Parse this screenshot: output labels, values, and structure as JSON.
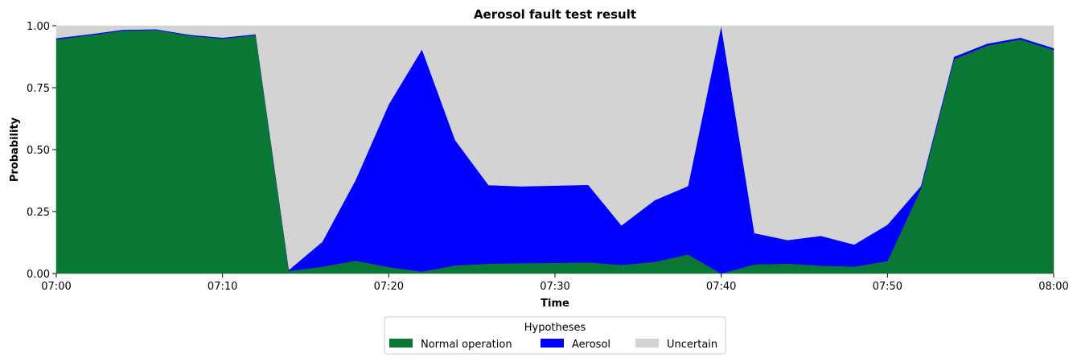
{
  "chart_data": {
    "type": "area",
    "stacked": true,
    "title": "Aerosol fault test result",
    "xlabel": "Time",
    "ylabel": "Probability",
    "xlim": [
      "07:00",
      "08:00"
    ],
    "ylim": [
      0,
      1
    ],
    "x_ticks": [
      "07:00",
      "07:10",
      "07:20",
      "07:30",
      "07:40",
      "07:50",
      "08:00"
    ],
    "y_ticks": [
      "0.00",
      "0.25",
      "0.50",
      "0.75",
      "1.00"
    ],
    "grid": false,
    "x": [
      "07:00",
      "07:02",
      "07:04",
      "07:06",
      "07:08",
      "07:10",
      "07:12",
      "07:14",
      "07:16",
      "07:18",
      "07:20",
      "07:22",
      "07:24",
      "07:26",
      "07:28",
      "07:30",
      "07:32",
      "07:34",
      "07:36",
      "07:38",
      "07:40",
      "07:42",
      "07:44",
      "07:46",
      "07:48",
      "07:50",
      "07:52",
      "07:54",
      "07:56",
      "07:58",
      "08:00"
    ],
    "series": [
      {
        "name": "Normal operation",
        "color": "#0b7734",
        "values": [
          0.945,
          0.962,
          0.98,
          0.983,
          0.96,
          0.948,
          0.962,
          0.01,
          0.028,
          0.052,
          0.026,
          0.008,
          0.033,
          0.04,
          0.042,
          0.043,
          0.045,
          0.035,
          0.047,
          0.077,
          0.0,
          0.037,
          0.04,
          0.032,
          0.028,
          0.05,
          0.34,
          0.865,
          0.92,
          0.945,
          0.902
        ]
      },
      {
        "name": "Aerosol",
        "color": "#0000ff",
        "values": [
          0.005,
          0.004,
          0.004,
          0.003,
          0.004,
          0.004,
          0.004,
          0.005,
          0.1,
          0.325,
          0.657,
          0.897,
          0.505,
          0.317,
          0.31,
          0.312,
          0.313,
          0.159,
          0.249,
          0.276,
          1.0,
          0.126,
          0.095,
          0.12,
          0.089,
          0.147,
          0.012,
          0.01,
          0.008,
          0.007,
          0.008
        ]
      },
      {
        "name": "Uncertain",
        "color": "#d3d3d3",
        "values": [
          0.05,
          0.034,
          0.016,
          0.014,
          0.036,
          0.048,
          0.034,
          0.985,
          0.872,
          0.623,
          0.317,
          0.095,
          0.462,
          0.643,
          0.648,
          0.645,
          0.642,
          0.806,
          0.704,
          0.647,
          0.0,
          0.837,
          0.865,
          0.848,
          0.883,
          0.803,
          0.648,
          0.125,
          0.072,
          0.048,
          0.09
        ]
      }
    ],
    "legend": {
      "title": "Hypotheses",
      "position": "below",
      "entries": [
        "Normal operation",
        "Aerosol",
        "Uncertain"
      ]
    }
  }
}
